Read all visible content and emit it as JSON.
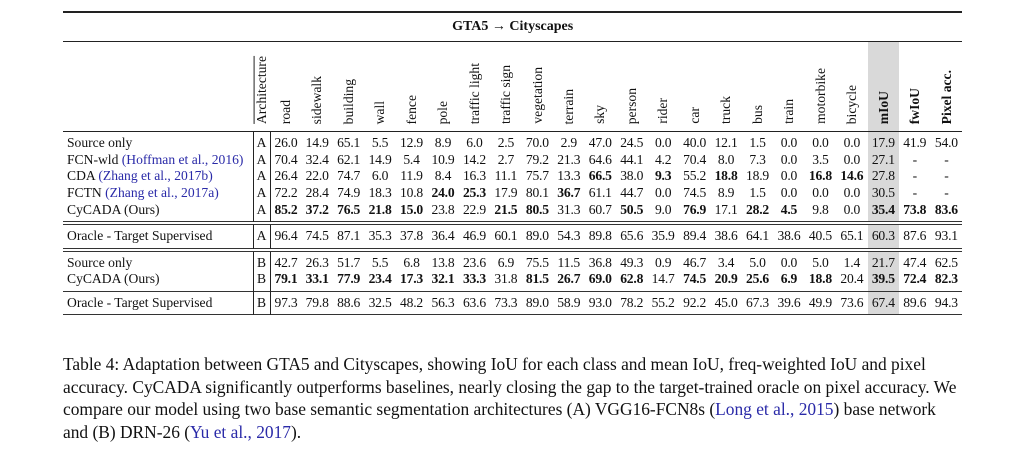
{
  "table": {
    "title": "GTA5 → Cityscapes",
    "arch_header": "Architecture",
    "columns": [
      "road",
      "sidewalk",
      "building",
      "wall",
      "fence",
      "pole",
      "traffic light",
      "traffic sign",
      "vegetation",
      "terrain",
      "sky",
      "person",
      "rider",
      "car",
      "truck",
      "bus",
      "train",
      "motorbike",
      "bicycle",
      "mIoU",
      "fwIoU",
      "Pixel acc."
    ],
    "bold_columns": [
      19,
      20,
      21
    ],
    "highlight_column": 19,
    "blocks": [
      [
        {
          "name": "Source only",
          "cite": "",
          "arch": "A",
          "values": [
            "26.0",
            "14.9",
            "65.1",
            "5.5",
            "12.9",
            "8.9",
            "6.0",
            "2.5",
            "70.0",
            "2.9",
            "47.0",
            "24.5",
            "0.0",
            "40.0",
            "12.1",
            "1.5",
            "0.0",
            "0.0",
            "0.0",
            "17.9",
            "41.9",
            "54.0"
          ],
          "bold": []
        },
        {
          "name": "FCN-wld ",
          "cite": "(Hoffman et al., 2016)",
          "arch": "A",
          "values": [
            "70.4",
            "32.4",
            "62.1",
            "14.9",
            "5.4",
            "10.9",
            "14.2",
            "2.7",
            "79.2",
            "21.3",
            "64.6",
            "44.1",
            "4.2",
            "70.4",
            "8.0",
            "7.3",
            "0.0",
            "3.5",
            "0.0",
            "27.1",
            "-",
            "-"
          ],
          "bold": []
        },
        {
          "name": "CDA ",
          "cite": "(Zhang et al., 2017b)",
          "arch": "A",
          "values": [
            "26.4",
            "22.0",
            "74.7",
            "6.0",
            "11.9",
            "8.4",
            "16.3",
            "11.1",
            "75.7",
            "13.3",
            "66.5",
            "38.0",
            "9.3",
            "55.2",
            "18.8",
            "18.9",
            "0.0",
            "16.8",
            "14.6",
            "27.8",
            "-",
            "-"
          ],
          "bold": [
            10,
            12,
            14,
            17,
            18
          ]
        },
        {
          "name": "FCTN ",
          "cite": "(Zhang et al., 2017a)",
          "arch": "A",
          "values": [
            "72.2",
            "28.4",
            "74.9",
            "18.3",
            "10.8",
            "24.0",
            "25.3",
            "17.9",
            "80.1",
            "36.7",
            "61.1",
            "44.7",
            "0.0",
            "74.5",
            "8.9",
            "1.5",
            "0.0",
            "0.0",
            "0.0",
            "30.5",
            "-",
            "-"
          ],
          "bold": [
            5,
            6,
            9
          ]
        },
        {
          "name": "CyCADA (Ours)",
          "cite": "",
          "arch": "A",
          "values": [
            "85.2",
            "37.2",
            "76.5",
            "21.8",
            "15.0",
            "23.8",
            "22.9",
            "21.5",
            "80.5",
            "31.3",
            "60.7",
            "50.5",
            "9.0",
            "76.9",
            "17.1",
            "28.2",
            "4.5",
            "9.8",
            "0.0",
            "35.4",
            "73.8",
            "83.6"
          ],
          "bold": [
            0,
            1,
            2,
            3,
            4,
            7,
            8,
            11,
            13,
            15,
            16,
            19,
            20,
            21
          ]
        }
      ],
      [
        {
          "name": "Oracle - Target Supervised",
          "cite": "",
          "arch": "A",
          "values": [
            "96.4",
            "74.5",
            "87.1",
            "35.3",
            "37.8",
            "36.4",
            "46.9",
            "60.1",
            "89.0",
            "54.3",
            "89.8",
            "65.6",
            "35.9",
            "89.4",
            "38.6",
            "64.1",
            "38.6",
            "40.5",
            "65.1",
            "60.3",
            "87.6",
            "93.1"
          ],
          "bold": []
        }
      ],
      [
        {
          "name": "Source only",
          "cite": "",
          "arch": "B",
          "values": [
            "42.7",
            "26.3",
            "51.7",
            "5.5",
            "6.8",
            "13.8",
            "23.6",
            "6.9",
            "75.5",
            "11.5",
            "36.8",
            "49.3",
            "0.9",
            "46.7",
            "3.4",
            "5.0",
            "0.0",
            "5.0",
            "1.4",
            "21.7",
            "47.4",
            "62.5"
          ],
          "bold": []
        },
        {
          "name": "CyCADA (Ours)",
          "cite": "",
          "arch": "B",
          "values": [
            "79.1",
            "33.1",
            "77.9",
            "23.4",
            "17.3",
            "32.1",
            "33.3",
            "31.8",
            "81.5",
            "26.7",
            "69.0",
            "62.8",
            "14.7",
            "74.5",
            "20.9",
            "25.6",
            "6.9",
            "18.8",
            "20.4",
            "39.5",
            "72.4",
            "82.3"
          ],
          "bold": [
            0,
            1,
            2,
            3,
            4,
            5,
            6,
            8,
            9,
            10,
            11,
            13,
            14,
            15,
            16,
            17,
            19,
            20,
            21
          ]
        }
      ],
      [
        {
          "name": "Oracle - Target Supervised",
          "cite": "",
          "arch": "B",
          "values": [
            "97.3",
            "79.8",
            "88.6",
            "32.5",
            "48.2",
            "56.3",
            "63.6",
            "73.3",
            "89.0",
            "58.9",
            "93.0",
            "78.2",
            "55.2",
            "92.2",
            "45.0",
            "67.3",
            "39.6",
            "49.9",
            "73.6",
            "67.4",
            "89.6",
            "94.3"
          ],
          "bold": []
        }
      ]
    ]
  },
  "caption": [
    {
      "t": "Table 4: Adaptation between GTA5 and Cityscapes, showing IoU for each class and mean IoU, freq-weighted IoU and pixel accuracy. CyCADA significantly outperforms baselines, nearly closing the gap to the target-trained oracle on pixel accuracy. We compare our model using two base semantic segmentation architectures (A) VGG16-FCN8s (",
      "c": false
    },
    {
      "t": "Long et al., 2015",
      "c": true
    },
    {
      "t": ") base network and (B) DRN-26 (",
      "c": false
    },
    {
      "t": "Yu et al., 2017",
      "c": true
    },
    {
      "t": ").",
      "c": false
    }
  ]
}
